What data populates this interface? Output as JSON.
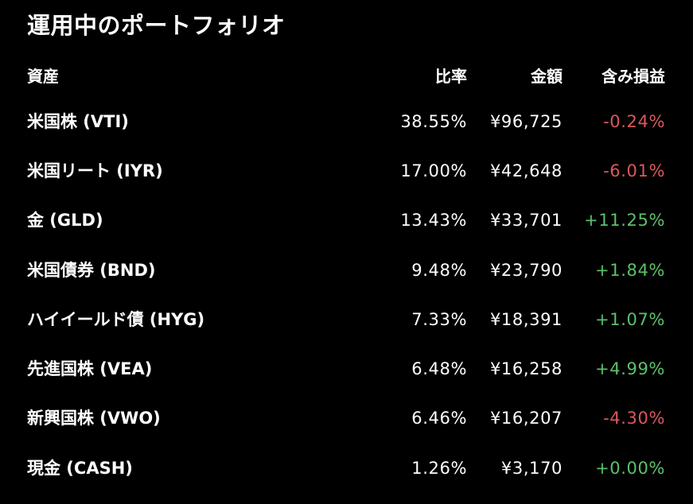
{
  "title": "運用中のポートフォリオ",
  "header": {
    "asset": "資産",
    "ratio": "比率",
    "amount": "金額",
    "gain": "含み損益"
  },
  "colors": {
    "background": "#000000",
    "text": "#ffffff",
    "negative": "#d9585c",
    "positive": "#5cc06a"
  },
  "rows": [
    {
      "name": "米国株 (VTI)",
      "ratio": "38.55%",
      "amount": "¥96,725",
      "gain": "-0.24%",
      "trend": "negative"
    },
    {
      "name": "米国リート (IYR)",
      "ratio": "17.00%",
      "amount": "¥42,648",
      "gain": "-6.01%",
      "trend": "negative"
    },
    {
      "name": "金 (GLD)",
      "ratio": "13.43%",
      "amount": "¥33,701",
      "gain": "+11.25%",
      "trend": "positive"
    },
    {
      "name": "米国債券 (BND)",
      "ratio": "9.48%",
      "amount": "¥23,790",
      "gain": "+1.84%",
      "trend": "positive"
    },
    {
      "name": "ハイイールド債 (HYG)",
      "ratio": "7.33%",
      "amount": "¥18,391",
      "gain": "+1.07%",
      "trend": "positive"
    },
    {
      "name": "先進国株 (VEA)",
      "ratio": "6.48%",
      "amount": "¥16,258",
      "gain": "+4.99%",
      "trend": "positive"
    },
    {
      "name": "新興国株 (VWO)",
      "ratio": "6.46%",
      "amount": "¥16,207",
      "gain": "-4.30%",
      "trend": "negative"
    },
    {
      "name": "現金 (CASH)",
      "ratio": "1.26%",
      "amount": "¥3,170",
      "gain": "+0.00%",
      "trend": "positive"
    }
  ]
}
